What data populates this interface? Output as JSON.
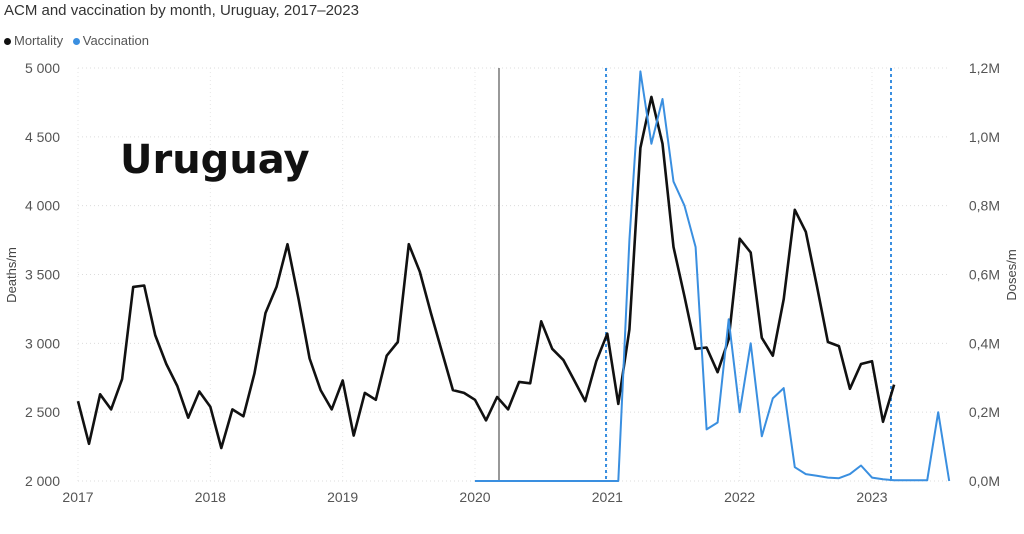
{
  "chart_data": {
    "type": "line",
    "title": "ACM and vaccination by month, Uruguay, 2017–2023",
    "overlay_text": "Uruguay",
    "ylabel_left": "Deaths/m",
    "ylabel_right": "Doses/m",
    "x_ticks": [
      "2017",
      "2018",
      "2019",
      "2020",
      "2021",
      "2022",
      "2023"
    ],
    "y_left_ticks": [
      "2 000",
      "2 500",
      "3 000",
      "3 500",
      "4 000",
      "4 500",
      "5 000"
    ],
    "y_right_ticks": [
      "0,0M",
      "0,2M",
      "0,4M",
      "0,6M",
      "0,8M",
      "1,0M",
      "1,2M"
    ],
    "ylim_left": [
      2000,
      5000
    ],
    "ylim_right": [
      0,
      1200000
    ],
    "x_range": [
      2017.0,
      2023.58
    ],
    "grid": true,
    "legend_position": "top-left",
    "series": [
      {
        "name": "Mortality",
        "color": "#111111",
        "axis": "left",
        "x": [
          2017.0,
          2017.083,
          2017.167,
          2017.25,
          2017.333,
          2017.417,
          2017.5,
          2017.583,
          2017.667,
          2017.75,
          2017.833,
          2017.917,
          2018.0,
          2018.083,
          2018.167,
          2018.25,
          2018.333,
          2018.417,
          2018.5,
          2018.583,
          2018.667,
          2018.75,
          2018.833,
          2018.917,
          2019.0,
          2019.083,
          2019.167,
          2019.25,
          2019.333,
          2019.417,
          2019.5,
          2019.583,
          2019.667,
          2019.75,
          2019.833,
          2019.917,
          2020.0,
          2020.083,
          2020.167,
          2020.25,
          2020.333,
          2020.417,
          2020.5,
          2020.583,
          2020.667,
          2020.75,
          2020.833,
          2020.917,
          2021.0,
          2021.083,
          2021.167,
          2021.25,
          2021.333,
          2021.417,
          2021.5,
          2021.583,
          2021.667,
          2021.75,
          2021.833,
          2021.917,
          2022.0,
          2022.083,
          2022.167,
          2022.25,
          2022.333,
          2022.417,
          2022.5,
          2022.583,
          2022.667,
          2022.75,
          2022.833,
          2022.917,
          2023.0,
          2023.083,
          2023.167
        ],
        "values": [
          2580,
          2270,
          2630,
          2520,
          2740,
          3410,
          3420,
          3060,
          2850,
          2690,
          2460,
          2650,
          2540,
          2240,
          2520,
          2470,
          2780,
          3220,
          3410,
          3720,
          3320,
          2890,
          2660,
          2520,
          2730,
          2330,
          2640,
          2590,
          2910,
          3010,
          3720,
          3520,
          3220,
          2940,
          2660,
          2640,
          2590,
          2440,
          2610,
          2520,
          2720,
          2710,
          3160,
          2960,
          2880,
          2730,
          2580,
          2870,
          3070,
          2560,
          3100,
          4420,
          4790,
          4450,
          3700,
          3340,
          2960,
          2970,
          2790,
          3030,
          3760,
          3660,
          3040,
          2910,
          3320,
          3970,
          3810,
          3420,
          3010,
          2980,
          2670,
          2850,
          2870,
          2430,
          2700
        ]
      },
      {
        "name": "Vaccination",
        "color": "#3a8fe0",
        "axis": "right",
        "x": [
          2020.0,
          2020.083,
          2020.167,
          2020.25,
          2020.333,
          2020.417,
          2020.5,
          2020.583,
          2020.667,
          2020.75,
          2020.833,
          2020.917,
          2021.0,
          2021.083,
          2021.167,
          2021.25,
          2021.333,
          2021.417,
          2021.5,
          2021.583,
          2021.667,
          2021.75,
          2021.833,
          2021.917,
          2022.0,
          2022.083,
          2022.167,
          2022.25,
          2022.333,
          2022.417,
          2022.5,
          2022.583,
          2022.667,
          2022.75,
          2022.833,
          2022.917,
          2023.0,
          2023.083,
          2023.167,
          2023.25,
          2023.333,
          2023.417,
          2023.5,
          2023.583
        ],
        "values": [
          0,
          0,
          0,
          0,
          0,
          0,
          0,
          0,
          0,
          0,
          0,
          0,
          0,
          0,
          700000,
          1190000,
          980000,
          1110000,
          870000,
          800000,
          680000,
          150000,
          170000,
          470000,
          200000,
          400000,
          130000,
          240000,
          270000,
          40000,
          20000,
          15000,
          10000,
          8000,
          20000,
          45000,
          10000,
          5000,
          2000,
          2000,
          2000,
          2000,
          200000,
          0
        ]
      }
    ]
  },
  "legend": [
    {
      "label": "Mortality",
      "color": "#111111"
    },
    {
      "label": "Vaccination",
      "color": "#3a8fe0"
    }
  ]
}
